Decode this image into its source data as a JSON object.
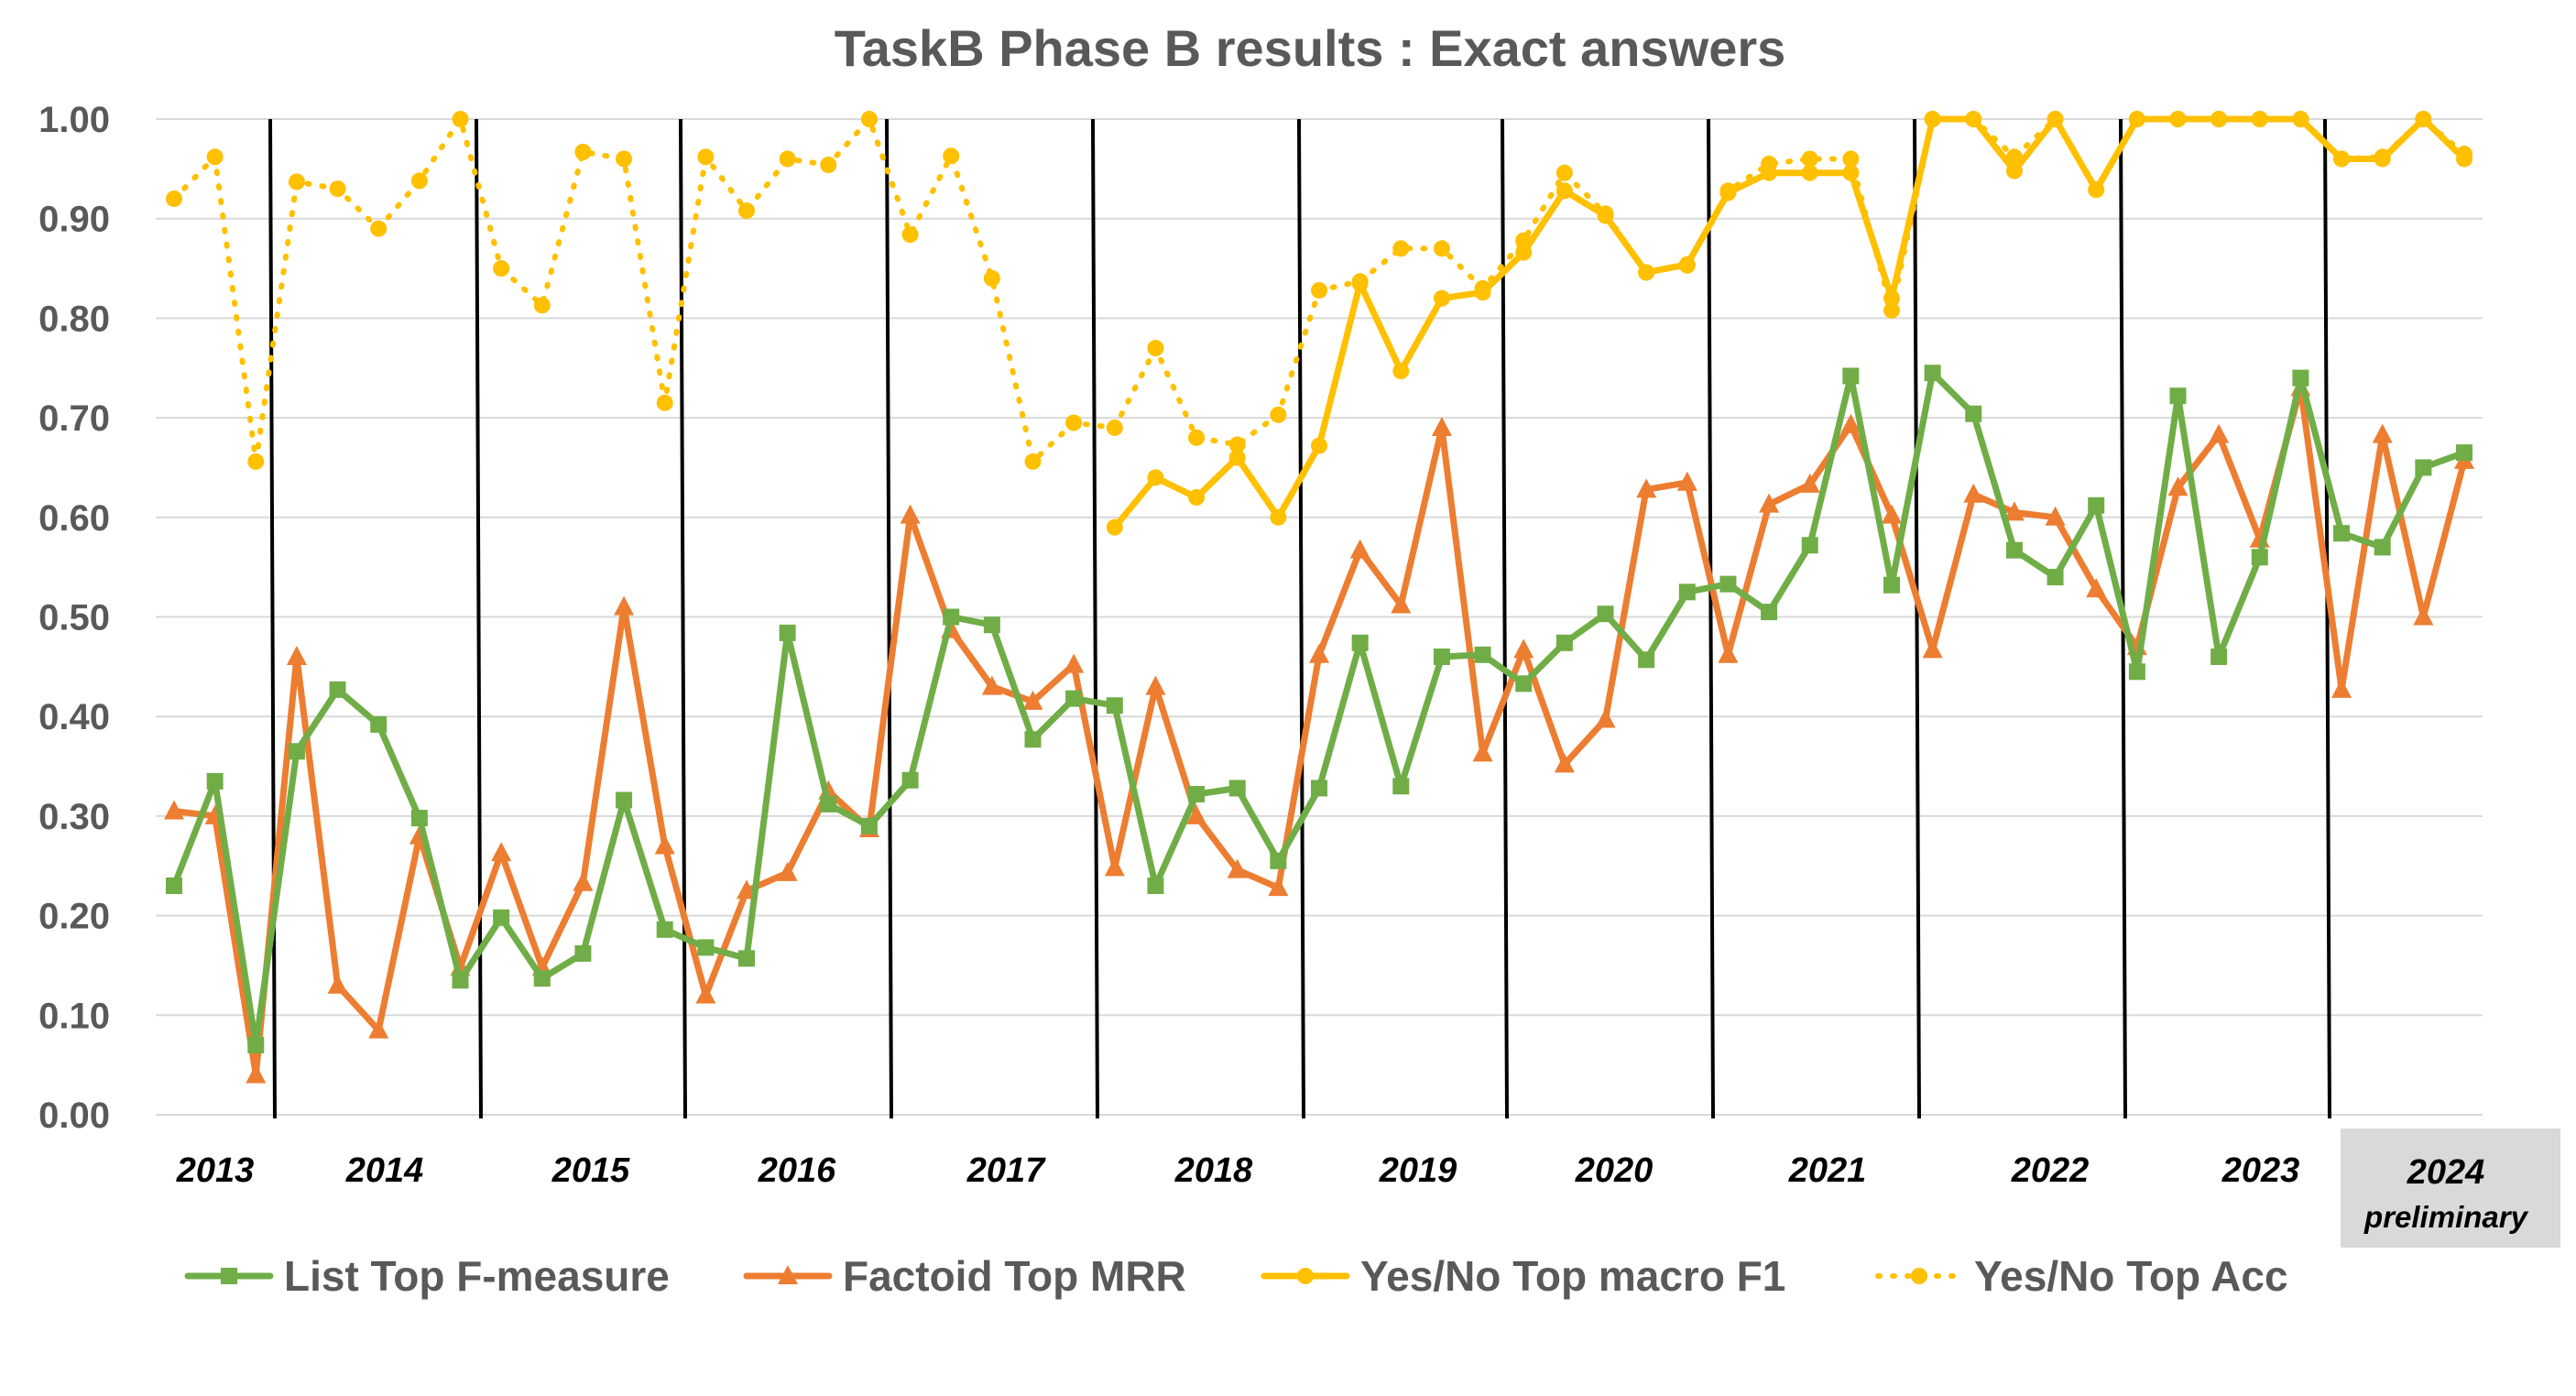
{
  "chart_data": {
    "type": "line",
    "title": "TaskB Phase B results : Exact answers",
    "ylim": [
      0,
      1
    ],
    "yticks": [
      "0.00",
      "0.10",
      "0.20",
      "0.30",
      "0.40",
      "0.50",
      "0.60",
      "0.70",
      "0.80",
      "0.90",
      "1.00"
    ],
    "grid": true,
    "legend_position": "bottom",
    "years": [
      {
        "label": "2013",
        "sub": ""
      },
      {
        "label": "2014",
        "sub": ""
      },
      {
        "label": "2015",
        "sub": ""
      },
      {
        "label": "2016",
        "sub": ""
      },
      {
        "label": "2017",
        "sub": ""
      },
      {
        "label": "2018",
        "sub": ""
      },
      {
        "label": "2019",
        "sub": ""
      },
      {
        "label": "2020",
        "sub": ""
      },
      {
        "label": "2021",
        "sub": ""
      },
      {
        "label": "2022",
        "sub": ""
      },
      {
        "label": "2023",
        "sub": ""
      },
      {
        "label": "2024",
        "sub": "preliminary"
      }
    ],
    "series": [
      {
        "name": "List Top F-measure",
        "color": "#70AD47",
        "marker": "square",
        "dash": false,
        "values": [
          0.23,
          0.335,
          0.07,
          0.365,
          0.427,
          0.392,
          0.298,
          0.135,
          0.198,
          0.137,
          0.162,
          0.316,
          0.186,
          0.168,
          0.157,
          0.484,
          0.312,
          0.29,
          0.336,
          0.5,
          0.492,
          0.377,
          0.418,
          0.411,
          0.23,
          0.322,
          0.328,
          0.255,
          0.328,
          0.474,
          0.33,
          0.46,
          0.462,
          0.433,
          0.474,
          0.503,
          0.457,
          0.525,
          0.533,
          0.505,
          0.572,
          0.742,
          0.532,
          0.745,
          0.704,
          0.567,
          0.54,
          0.612,
          0.445,
          0.722,
          0.46,
          0.56,
          0.74,
          0.584,
          0.57,
          0.65,
          0.665
        ]
      },
      {
        "name": "Factoid Top MRR",
        "color": "#ED7D31",
        "marker": "triangle",
        "dash": false,
        "values": [
          0.305,
          0.3,
          0.04,
          0.46,
          0.13,
          0.085,
          0.28,
          0.148,
          0.263,
          0.148,
          0.233,
          0.51,
          0.27,
          0.12,
          0.225,
          0.243,
          0.325,
          0.287,
          0.602,
          0.487,
          0.43,
          0.415,
          0.452,
          0.248,
          0.43,
          0.3,
          0.246,
          0.228,
          0.462,
          0.567,
          0.512,
          0.69,
          0.363,
          0.467,
          0.352,
          0.397,
          0.628,
          0.635,
          0.462,
          0.613,
          0.633,
          0.693,
          0.602,
          0.467,
          0.623,
          0.605,
          0.6,
          0.528,
          0.47,
          0.63,
          0.683,
          0.578,
          0.73,
          0.427,
          0.683,
          0.5,
          0.657
        ]
      },
      {
        "name": "Yes/No Top macro F1",
        "color": "#FFC000",
        "marker": "circle",
        "dash": false,
        "values": [
          null,
          null,
          null,
          null,
          null,
          null,
          null,
          null,
          null,
          null,
          null,
          null,
          null,
          null,
          null,
          null,
          null,
          null,
          null,
          null,
          null,
          null,
          null,
          0.59,
          0.64,
          0.62,
          0.66,
          0.6,
          0.672,
          0.835,
          0.747,
          0.82,
          0.826,
          0.866,
          0.928,
          0.903,
          0.846,
          0.854,
          0.926,
          0.946,
          0.946,
          0.946,
          0.82,
          1.0,
          1.0,
          0.948,
          1.0,
          0.929,
          1.0,
          1.0,
          1.0,
          1.0,
          1.0,
          0.96,
          0.96,
          1.0,
          0.96
        ]
      },
      {
        "name": "Yes/No Top Acc",
        "color": "#FFC000",
        "marker": "circle",
        "dash": true,
        "values": [
          0.92,
          0.962,
          0.656,
          0.937,
          0.93,
          0.89,
          0.938,
          1.0,
          0.85,
          0.813,
          0.967,
          0.96,
          0.715,
          0.962,
          0.908,
          0.96,
          0.954,
          1.0,
          0.884,
          0.963,
          0.84,
          0.656,
          0.695,
          0.69,
          0.77,
          0.68,
          0.673,
          0.703,
          0.828,
          0.837,
          0.87,
          0.87,
          0.83,
          0.878,
          0.946,
          0.905,
          0.846,
          0.853,
          0.928,
          0.955,
          0.96,
          0.96,
          0.808,
          1.0,
          1.0,
          0.962,
          1.0,
          0.929,
          1.0,
          1.0,
          1.0,
          1.0,
          1.0,
          0.96,
          0.962,
          1.0,
          0.965
        ]
      }
    ]
  }
}
